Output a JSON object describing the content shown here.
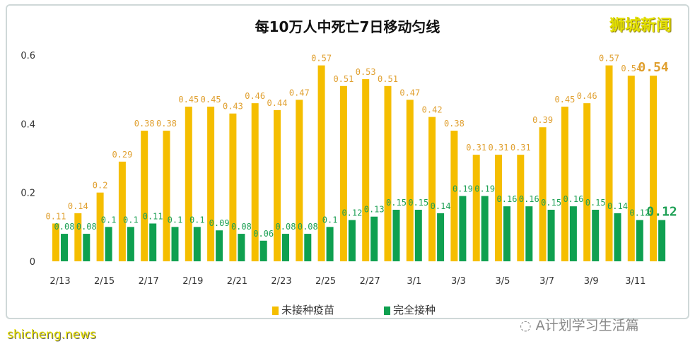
{
  "brand": "狮城新闻",
  "watermark_bottom": "shicheng.news",
  "wechat_label": "A计划学习生活篇",
  "chart_data": {
    "type": "bar",
    "title": "每10万人中死亡7日移动匀线",
    "categories": [
      "2/13",
      "2/14",
      "2/15",
      "2/16",
      "2/17",
      "2/18",
      "2/19",
      "2/20",
      "2/21",
      "2/22",
      "2/23",
      "2/24",
      "2/25",
      "2/26",
      "2/27",
      "2/28",
      "3/1",
      "3/2",
      "3/3",
      "3/4",
      "3/5",
      "3/6",
      "3/7",
      "3/8",
      "3/9",
      "3/10",
      "3/11",
      "3/12"
    ],
    "tick_labels": [
      "2/13",
      "2/15",
      "2/17",
      "2/19",
      "2/21",
      "2/23",
      "2/25",
      "2/27",
      "3/1",
      "3/3",
      "3/5",
      "3/7",
      "3/9",
      "3/11"
    ],
    "yticks": [
      "0",
      "0.2",
      "0.4",
      "0.6"
    ],
    "ylim": [
      0,
      0.6
    ],
    "grid": false,
    "legend_position": "bottom",
    "series": [
      {
        "name": "未接种疫苗",
        "color": "#f5be00",
        "values": [
          0.11,
          0.14,
          0.2,
          0.29,
          0.38,
          0.38,
          0.45,
          0.45,
          0.43,
          0.46,
          0.44,
          0.47,
          0.57,
          0.51,
          0.53,
          0.51,
          0.47,
          0.42,
          0.38,
          0.31,
          0.31,
          0.31,
          0.39,
          0.45,
          0.46,
          0.57,
          0.54,
          0.54
        ]
      },
      {
        "name": "完全接种",
        "color": "#0fa050",
        "values": [
          0.08,
          0.08,
          0.1,
          0.1,
          0.11,
          0.1,
          0.1,
          0.09,
          0.08,
          0.06,
          0.08,
          0.08,
          0.1,
          0.12,
          0.13,
          0.15,
          0.15,
          0.14,
          0.19,
          0.19,
          0.16,
          0.16,
          0.15,
          0.16,
          0.15,
          0.14,
          0.12,
          0.12
        ]
      }
    ]
  }
}
